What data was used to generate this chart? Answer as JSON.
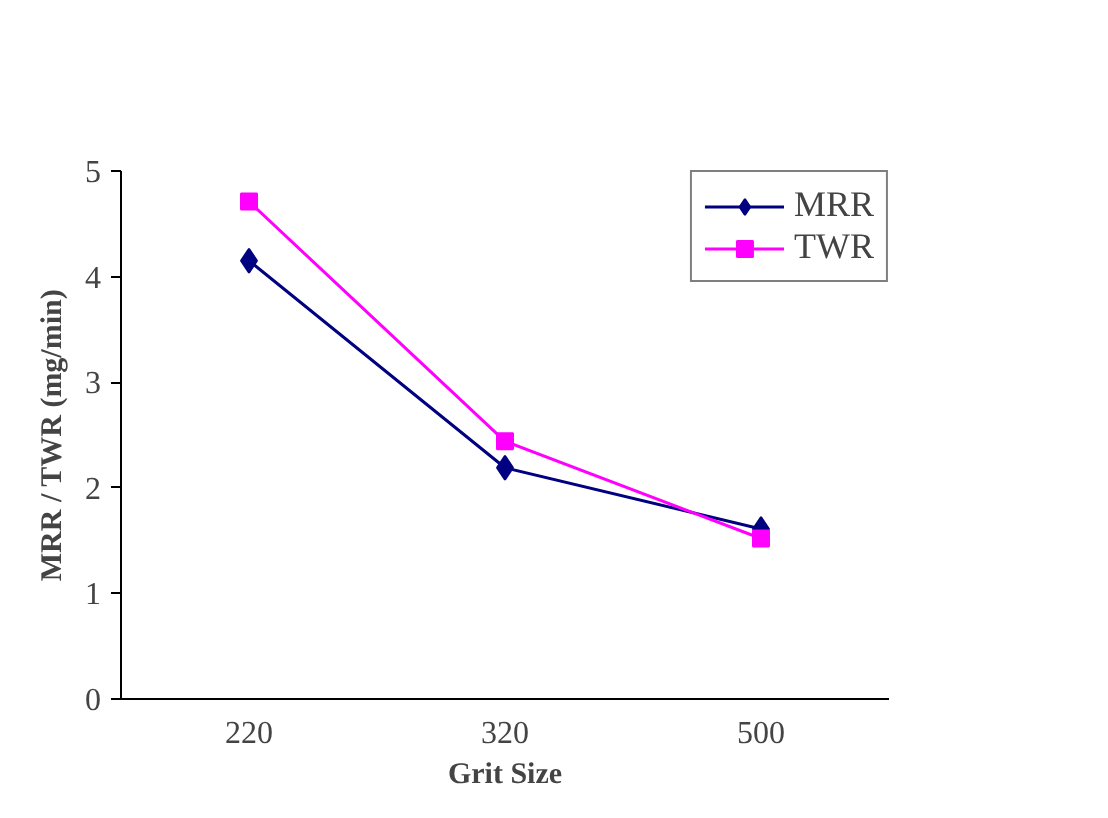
{
  "chart_data": {
    "type": "line",
    "xlabel": "Grit Size",
    "ylabel": "MRR / TWR (mg/min)",
    "categories": [
      "220",
      "320",
      "500"
    ],
    "series": [
      {
        "name": "MRR",
        "color": "#000080",
        "marker": "diamond",
        "values": [
          4.15,
          2.19,
          1.61
        ]
      },
      {
        "name": "TWR",
        "color": "#ff00ff",
        "marker": "square",
        "values": [
          4.71,
          2.44,
          1.52
        ]
      }
    ],
    "ylim": [
      0,
      5
    ],
    "yticks": [
      0,
      1,
      2,
      3,
      4,
      5
    ],
    "grid": false,
    "legend": "top right",
    "line_style": "solid"
  }
}
